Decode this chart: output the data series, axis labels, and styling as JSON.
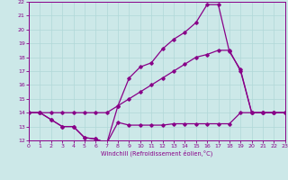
{
  "xlabel": "Windchill (Refroidissement éolien,°C)",
  "xlim": [
    0,
    23
  ],
  "ylim": [
    12,
    22
  ],
  "xticks": [
    0,
    1,
    2,
    3,
    4,
    5,
    6,
    7,
    8,
    9,
    10,
    11,
    12,
    13,
    14,
    15,
    16,
    17,
    18,
    19,
    20,
    21,
    22,
    23
  ],
  "yticks": [
    12,
    13,
    14,
    15,
    16,
    17,
    18,
    19,
    20,
    21,
    22
  ],
  "background_color": "#cce8e8",
  "grid_color": "#b0d8d8",
  "line_color": "#880088",
  "line1_x": [
    0,
    1,
    2,
    3,
    4,
    5,
    6,
    7,
    8,
    9,
    10,
    11,
    12,
    13,
    14,
    15,
    16,
    17,
    18,
    19,
    20,
    21,
    22,
    23
  ],
  "line1_y": [
    14,
    14,
    13.5,
    13,
    13,
    12.2,
    12.1,
    11.8,
    13.3,
    13.1,
    13.1,
    13.1,
    13.1,
    13.2,
    13.2,
    13.2,
    13.2,
    13.2,
    13.2,
    14,
    14,
    14,
    14,
    14
  ],
  "line2_x": [
    0,
    1,
    2,
    3,
    4,
    5,
    6,
    7,
    8,
    9,
    10,
    11,
    12,
    13,
    14,
    15,
    16,
    17,
    18,
    19,
    20,
    21,
    22,
    23
  ],
  "line2_y": [
    14,
    14,
    14,
    14,
    14,
    14,
    14,
    14,
    14.5,
    15,
    15.5,
    16,
    16.5,
    17,
    17.5,
    18,
    18.2,
    18.5,
    18.5,
    17,
    14,
    14,
    14,
    14
  ],
  "line3_x": [
    0,
    1,
    2,
    3,
    4,
    5,
    6,
    7,
    8,
    9,
    10,
    11,
    12,
    13,
    14,
    15,
    16,
    17,
    18,
    19,
    20,
    21,
    22,
    23
  ],
  "line3_y": [
    14,
    14,
    13.5,
    13,
    13,
    12.2,
    12.1,
    11.8,
    14.5,
    16.5,
    17.3,
    17.6,
    18.6,
    19.3,
    19.8,
    20.5,
    21.8,
    21.8,
    18.4,
    17.1,
    14.0,
    14,
    14,
    14
  ]
}
